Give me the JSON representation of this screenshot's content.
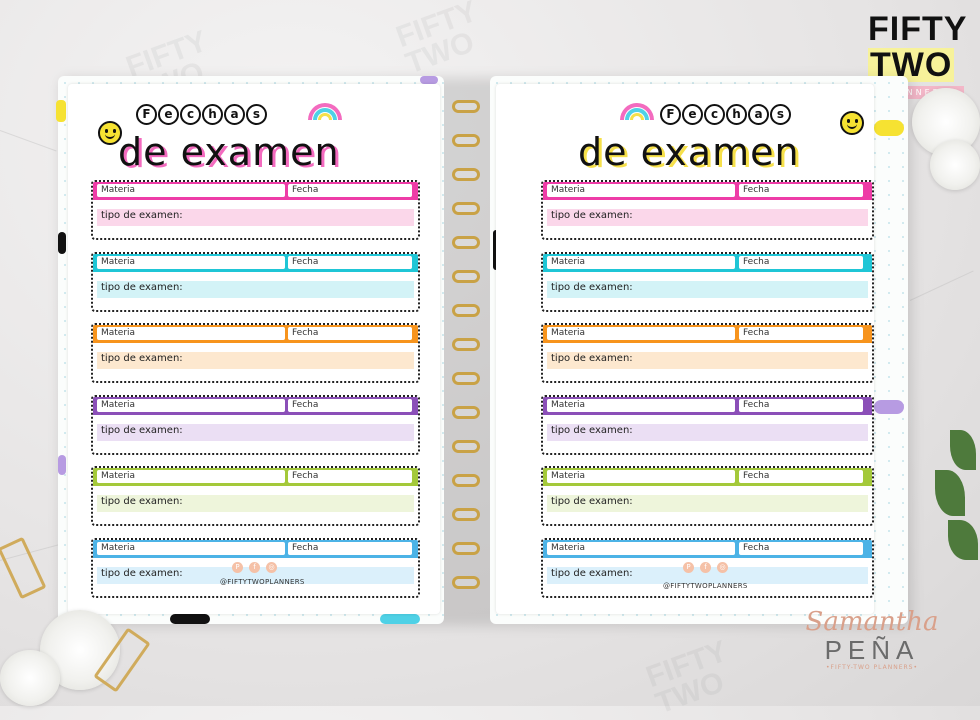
{
  "brand": {
    "logo_line1": "FIFTY",
    "logo_line2": "TWO",
    "logo_tagline": "PLANNERS"
  },
  "pages": {
    "title_word": [
      "F",
      "e",
      "c",
      "h",
      "a",
      "s"
    ],
    "subtitle": "de examen"
  },
  "card_labels": {
    "materia": "Materia",
    "fecha": "Fecha",
    "tipo": "tipo de examen:"
  },
  "colors": {
    "pink": "#ee3ca7",
    "cyan": "#1fc6d6",
    "orange": "#f7941d",
    "purple": "#8b4fb8",
    "green": "#a4c93a",
    "blue": "#4cb3e6",
    "pink_band": "#fbd7ea",
    "cyan_band": "#d3f3f7",
    "orange_band": "#fde8cf",
    "purple_band": "#ebdff4",
    "green_band": "#eef5db",
    "blue_band": "#dbf0fb"
  },
  "footer": {
    "handle": "@FIFTYTWOPLANNERS",
    "icons": [
      "pinterest-icon",
      "facebook-icon",
      "instagram-icon"
    ]
  },
  "signature": {
    "first_name": "Samantha",
    "last_name": "PEÑA",
    "sub": "•FIFTY-TWO PLANNERS•"
  },
  "watermarks": [
    "FIFTY TWO"
  ]
}
